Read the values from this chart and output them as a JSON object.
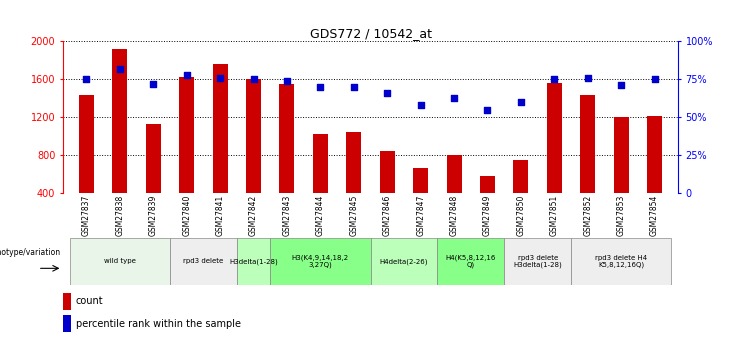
{
  "title": "GDS772 / 10542_at",
  "samples": [
    "GSM27837",
    "GSM27838",
    "GSM27839",
    "GSM27840",
    "GSM27841",
    "GSM27842",
    "GSM27843",
    "GSM27844",
    "GSM27845",
    "GSM27846",
    "GSM27847",
    "GSM27848",
    "GSM27849",
    "GSM27850",
    "GSM27851",
    "GSM27852",
    "GSM27853",
    "GSM27854"
  ],
  "counts": [
    1430,
    1920,
    1130,
    1620,
    1760,
    1600,
    1550,
    1020,
    1040,
    840,
    670,
    800,
    580,
    750,
    1560,
    1430,
    1200,
    1210
  ],
  "percentiles": [
    75,
    82,
    72,
    78,
    76,
    75,
    74,
    70,
    70,
    66,
    58,
    63,
    55,
    60,
    75,
    76,
    71,
    75
  ],
  "ylim_left": [
    400,
    2000
  ],
  "ylim_right": [
    0,
    100
  ],
  "yticks_left": [
    400,
    800,
    1200,
    1600,
    2000
  ],
  "yticks_right": [
    0,
    25,
    50,
    75,
    100
  ],
  "bar_color": "#cc0000",
  "dot_color": "#0000cc",
  "background_color": "#ffffff",
  "groups": [
    {
      "label": "wild type",
      "start": 0,
      "end": 2,
      "bg": "#e8f5e8"
    },
    {
      "label": "rpd3 delete",
      "start": 3,
      "end": 4,
      "bg": "#eeeeee"
    },
    {
      "label": "H3delta(1-28)",
      "start": 5,
      "end": 5,
      "bg": "#bbffbb"
    },
    {
      "label": "H3(K4,9,14,18,2\n3,27Q)",
      "start": 6,
      "end": 8,
      "bg": "#88ff88"
    },
    {
      "label": "H4delta(2-26)",
      "start": 9,
      "end": 10,
      "bg": "#bbffbb"
    },
    {
      "label": "H4(K5,8,12,16\nQ)",
      "start": 11,
      "end": 12,
      "bg": "#88ff88"
    },
    {
      "label": "rpd3 delete\nH3delta(1-28)",
      "start": 13,
      "end": 14,
      "bg": "#eeeeee"
    },
    {
      "label": "rpd3 delete H4\nK5,8,12,16Q)",
      "start": 15,
      "end": 17,
      "bg": "#eeeeee"
    }
  ],
  "legend_count_label": "count",
  "legend_pct_label": "percentile rank within the sample",
  "genotype_label": "genotype/variation"
}
